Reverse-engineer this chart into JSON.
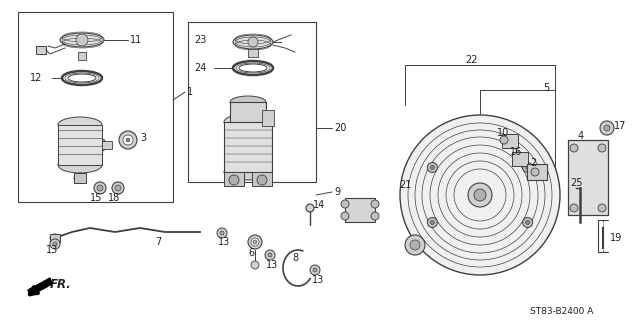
{
  "bg_color": "#ffffff",
  "diagram_code": "ST83-B2400 A",
  "lc": "#404040",
  "fs": 7.0,
  "fs_small": 6.0
}
